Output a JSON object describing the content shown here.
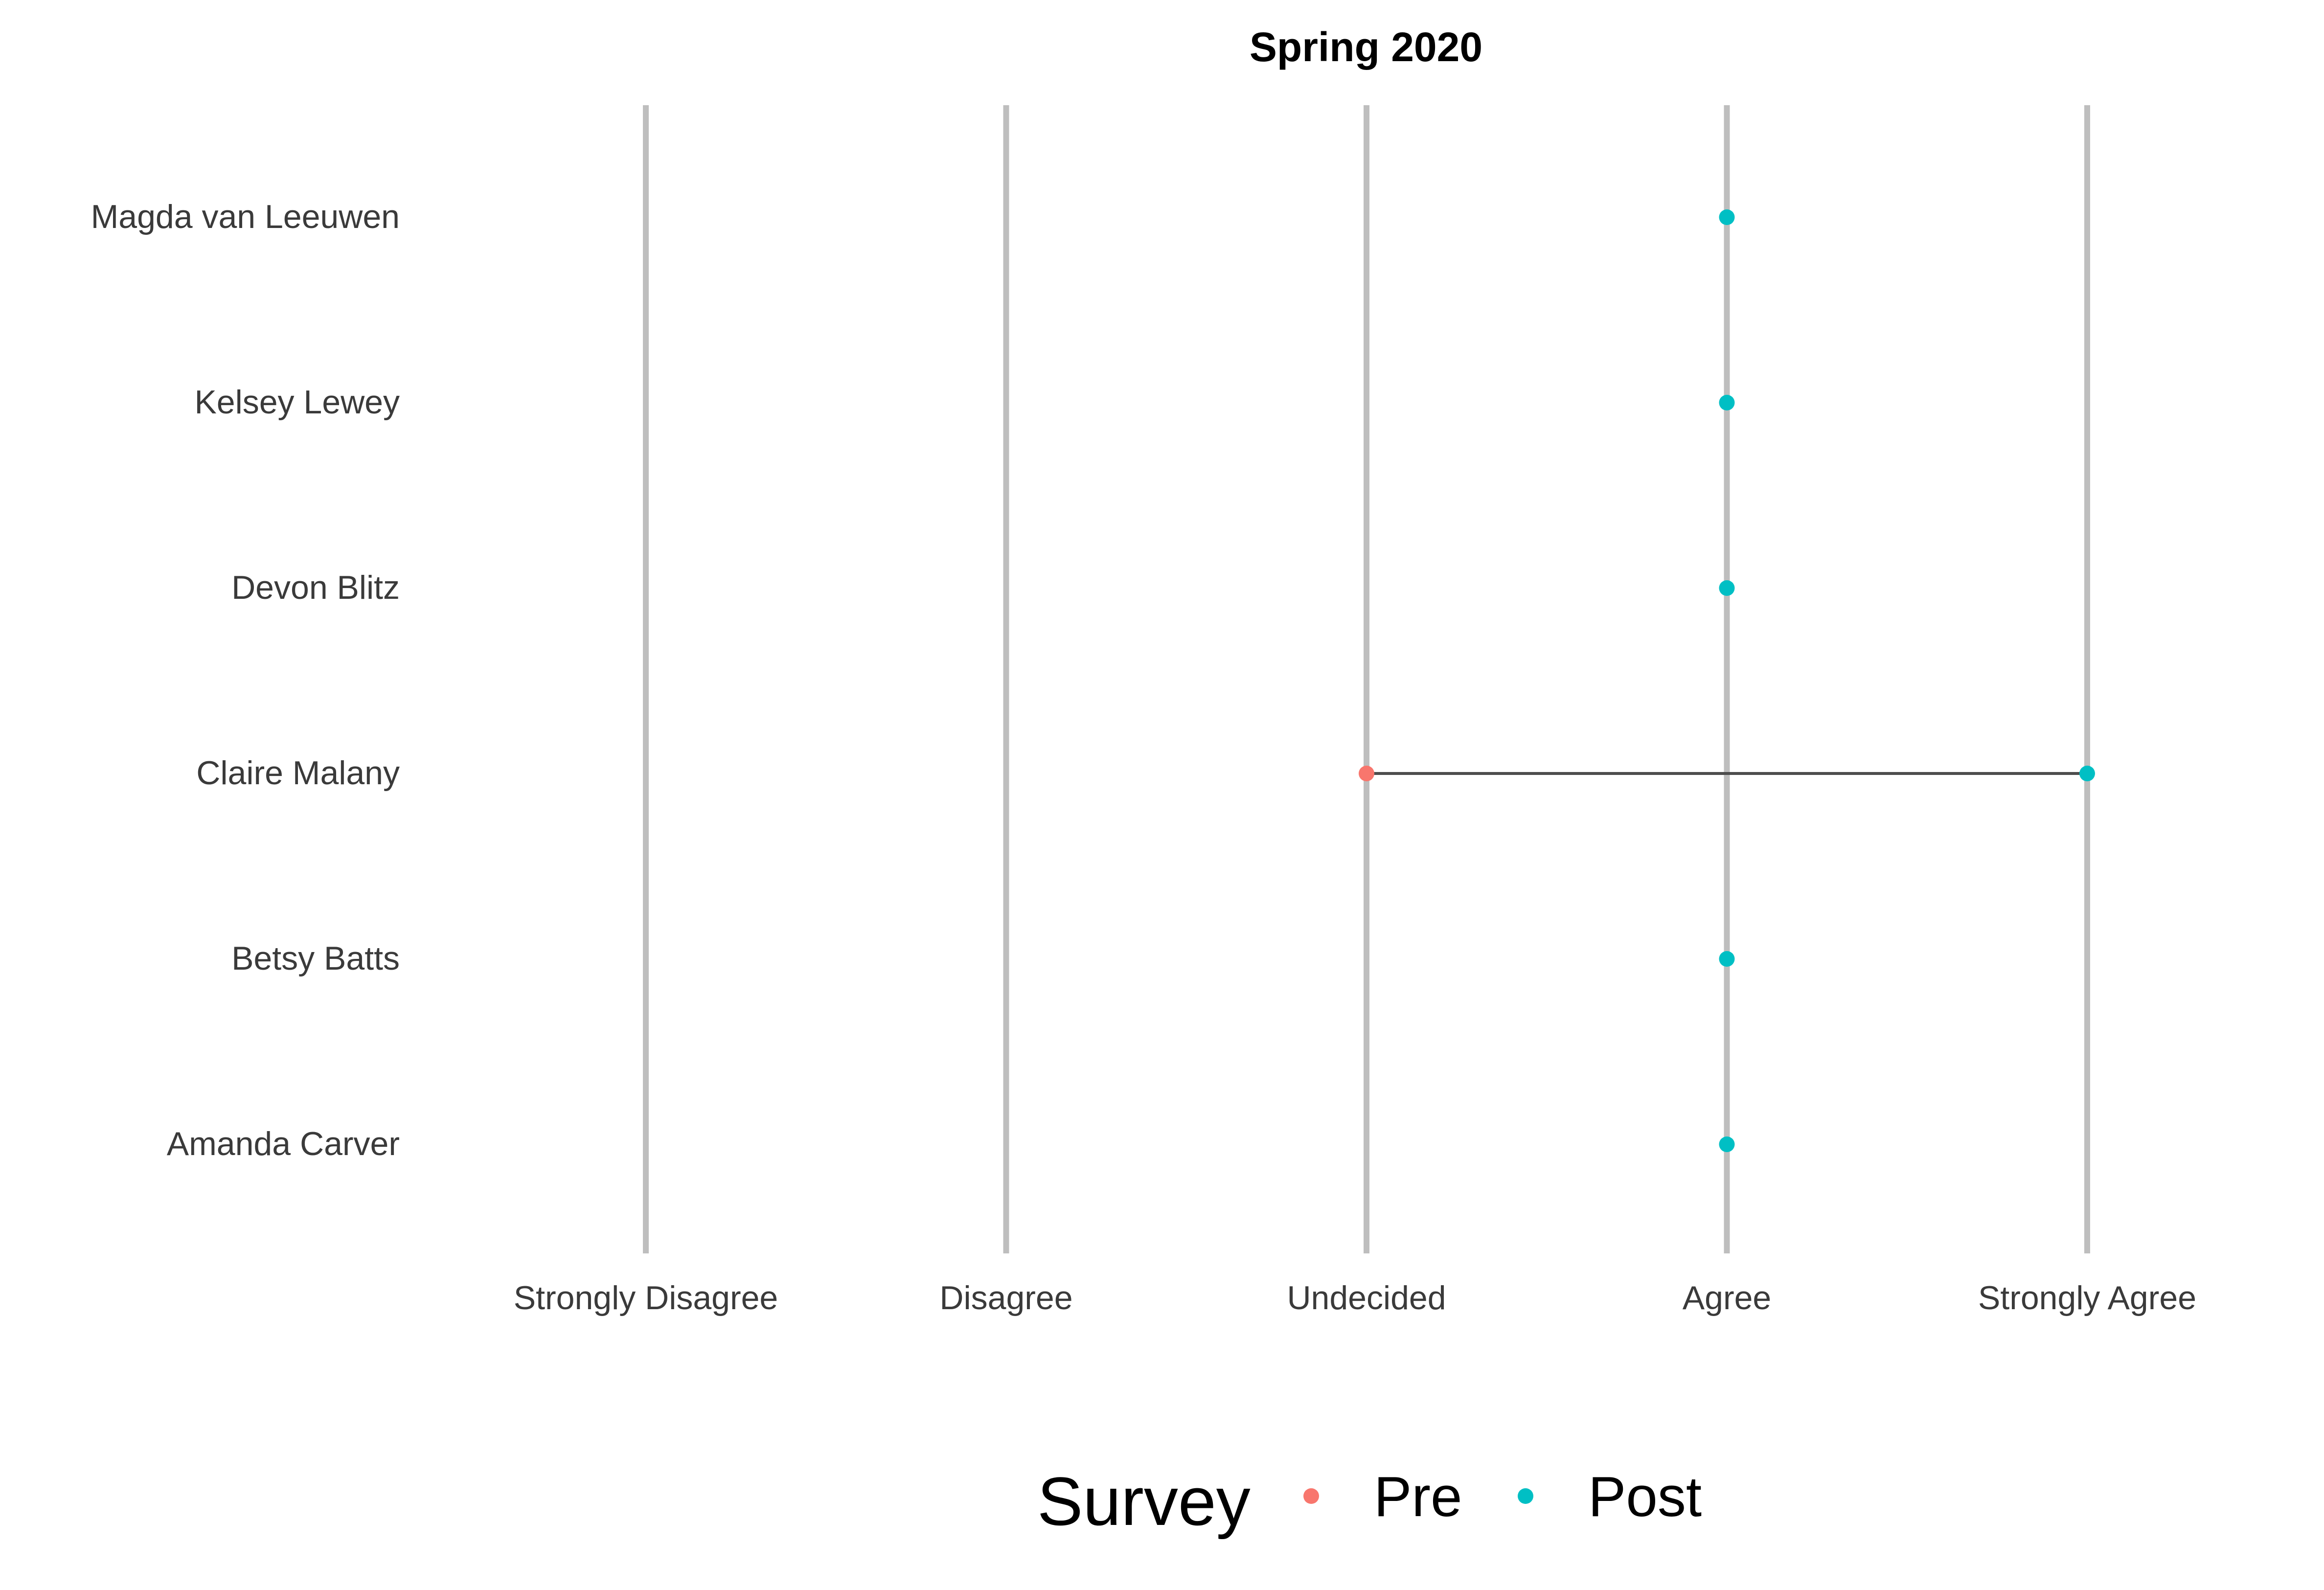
{
  "chart_data": {
    "type": "scatter",
    "title": "Spring 2020",
    "xlabel": "",
    "ylabel": "",
    "x_categories": [
      "Strongly Disagree",
      "Disagree",
      "Undecided",
      "Agree",
      "Strongly Agree"
    ],
    "y_categories": [
      "Magda van Leeuwen",
      "Kelsey Lewey",
      "Devon Blitz",
      "Claire Malany",
      "Betsy Batts",
      "Amanda Carver"
    ],
    "grid": "vertical major gridlines only",
    "legend_position": "bottom",
    "legend": {
      "title": "Survey",
      "entries": [
        {
          "name": "Pre",
          "color": "#F8766D"
        },
        {
          "name": "Post",
          "color": "#00BFC4"
        }
      ]
    },
    "series": [
      {
        "name": "Pre",
        "color": "#F8766D",
        "points": [
          {
            "person": "Claire Malany",
            "response": "Undecided"
          }
        ]
      },
      {
        "name": "Post",
        "color": "#00BFC4",
        "points": [
          {
            "person": "Magda van Leeuwen",
            "response": "Agree"
          },
          {
            "person": "Kelsey Lewey",
            "response": "Agree"
          },
          {
            "person": "Devon Blitz",
            "response": "Agree"
          },
          {
            "person": "Claire Malany",
            "response": "Strongly Agree"
          },
          {
            "person": "Betsy Batts",
            "response": "Agree"
          },
          {
            "person": "Amanda Carver",
            "response": "Agree"
          }
        ]
      }
    ],
    "segments": [
      {
        "person": "Claire Malany",
        "from": "Undecided",
        "to": "Strongly Agree",
        "color": "#4D4D4D"
      }
    ]
  }
}
